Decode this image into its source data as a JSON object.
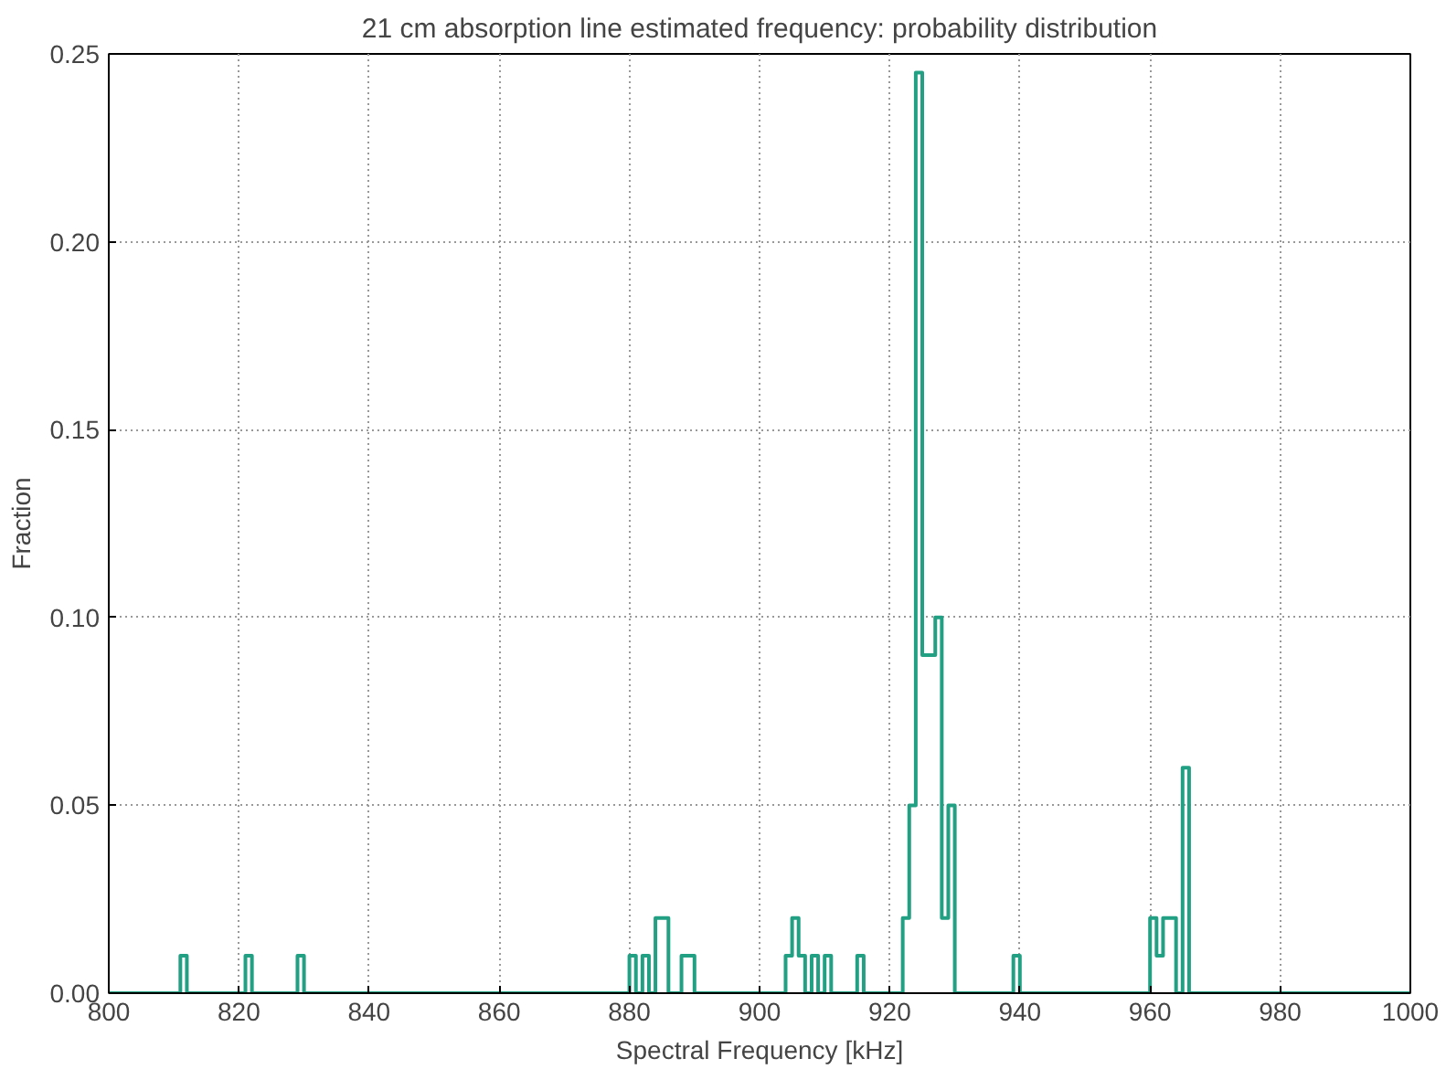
{
  "chart_data": {
    "type": "histogram",
    "title": "21 cm absorption line estimated frequency: probability distribution",
    "xlabel": "Spectral Frequency [kHz]",
    "ylabel": "Fraction",
    "color": "#22a083",
    "bins": [
      800,
      801,
      802,
      803,
      804,
      805,
      806,
      807,
      808,
      809,
      810,
      811,
      812,
      813,
      814,
      815,
      816,
      817,
      818,
      819,
      820,
      821,
      822,
      823,
      824,
      825,
      826,
      827,
      828,
      829,
      830,
      831,
      832,
      833,
      834,
      835,
      836,
      837,
      838,
      839,
      840,
      841,
      842,
      843,
      844,
      845,
      846,
      847,
      848,
      849,
      850,
      851,
      852,
      853,
      854,
      855,
      856,
      857,
      858,
      859,
      860,
      861,
      862,
      863,
      864,
      865,
      866,
      867,
      868,
      869,
      870,
      871,
      872,
      873,
      874,
      875,
      876,
      877,
      878,
      879,
      880,
      881,
      882,
      883,
      884,
      885,
      886,
      887,
      888,
      889,
      890,
      891,
      892,
      893,
      894,
      895,
      896,
      897,
      898,
      899,
      900,
      901,
      902,
      903,
      904,
      905,
      906,
      907,
      908,
      909,
      910,
      911,
      912,
      913,
      914,
      915,
      916,
      917,
      918,
      919,
      920,
      921,
      922,
      923,
      924,
      925,
      926,
      927,
      928,
      929,
      930,
      931,
      932,
      933,
      934,
      935,
      936,
      937,
      938,
      939,
      940,
      941,
      942,
      943,
      944,
      945,
      946,
      947,
      948,
      949,
      950,
      951,
      952,
      953,
      954,
      955,
      956,
      957,
      958,
      959,
      960,
      961,
      962,
      963,
      964,
      965,
      966,
      967,
      968,
      969,
      970,
      971,
      972,
      973,
      974,
      975,
      976,
      977,
      978,
      979,
      980,
      981,
      982,
      983,
      984,
      985,
      986,
      987,
      988,
      989,
      990,
      991,
      992,
      993,
      994,
      995,
      996,
      997,
      998,
      999,
      1000
    ],
    "values": [
      0,
      0,
      0,
      0,
      0,
      0,
      0,
      0,
      0,
      0,
      0,
      0.01,
      0,
      0,
      0,
      0,
      0,
      0,
      0,
      0,
      0,
      0.01,
      0,
      0,
      0,
      0,
      0,
      0,
      0,
      0.01,
      0,
      0,
      0,
      0,
      0,
      0,
      0,
      0,
      0,
      0,
      0,
      0,
      0,
      0,
      0,
      0,
      0,
      0,
      0,
      0,
      0,
      0,
      0,
      0,
      0,
      0,
      0,
      0,
      0,
      0,
      0,
      0,
      0,
      0,
      0,
      0,
      0,
      0,
      0,
      0,
      0,
      0,
      0,
      0,
      0,
      0,
      0,
      0,
      0,
      0,
      0.01,
      0,
      0.01,
      0,
      0.02,
      0.02,
      0,
      0,
      0.01,
      0.01,
      0,
      0,
      0,
      0,
      0,
      0,
      0,
      0,
      0,
      0,
      0,
      0,
      0,
      0,
      0.01,
      0.02,
      0.01,
      0,
      0.01,
      0,
      0.01,
      0,
      0,
      0,
      0,
      0.01,
      0,
      0,
      0,
      0,
      0,
      0,
      0.02,
      0.05,
      0.245,
      0.09,
      0.09,
      0.1,
      0.02,
      0.05,
      0,
      0,
      0,
      0,
      0,
      0,
      0,
      0,
      0,
      0.01,
      0,
      0,
      0,
      0,
      0,
      0,
      0,
      0,
      0,
      0,
      0,
      0,
      0,
      0,
      0,
      0,
      0,
      0,
      0,
      0,
      0.02,
      0.01,
      0.02,
      0.02,
      0,
      0.06,
      0,
      0,
      0,
      0,
      0,
      0,
      0,
      0,
      0,
      0,
      0,
      0,
      0,
      0,
      0,
      0,
      0,
      0,
      0,
      0,
      0,
      0,
      0,
      0,
      0,
      0,
      0,
      0,
      0,
      0,
      0,
      0,
      0,
      0
    ],
    "xlim": [
      800,
      1000
    ],
    "ylim": [
      0,
      0.25
    ],
    "xticks": [
      800,
      820,
      840,
      860,
      880,
      900,
      920,
      940,
      960,
      980,
      1000
    ],
    "yticks": [
      {
        "value": 0,
        "label": "0.00"
      },
      {
        "value": 0.05,
        "label": "0.05"
      },
      {
        "value": 0.1,
        "label": "0.10"
      },
      {
        "value": 0.15,
        "label": "0.15"
      },
      {
        "value": 0.2,
        "label": "0.20"
      },
      {
        "value": 0.25,
        "label": "0.25"
      }
    ],
    "grid": true
  }
}
